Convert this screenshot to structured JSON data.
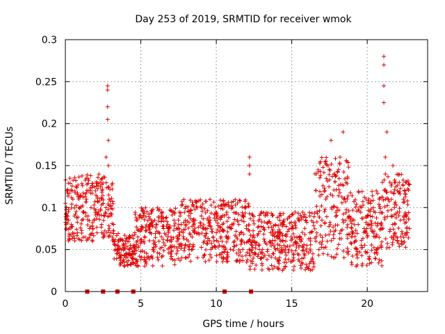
{
  "chart_data": {
    "type": "scatter",
    "title": "Day 253 of 2019, SRMTID for receiver wmok",
    "xlabel": "GPS time / hours",
    "ylabel": "SRMTID / TECUs",
    "xlim": [
      0,
      24
    ],
    "ylim": [
      0,
      0.3
    ],
    "xticks": [
      0,
      5,
      10,
      15,
      20
    ],
    "xtick_labels": [
      "0",
      "5",
      "10",
      "15",
      "20"
    ],
    "yticks": [
      0,
      0.05,
      0.1,
      0.15,
      0.2,
      0.25,
      0.3
    ],
    "ytick_labels": [
      "0",
      "0.05",
      "0.1",
      "0.15",
      "0.2",
      "0.25",
      "0.3"
    ],
    "grid": true,
    "marker": "+",
    "color": "#e00000",
    "series": [
      {
        "name": "SRMTID",
        "x": [
          0.0,
          0.1,
          0.2,
          0.3,
          0.4,
          0.5,
          0.6,
          0.7,
          0.8,
          0.9,
          1.0,
          1.1,
          1.2,
          1.3,
          1.4,
          1.5,
          1.6,
          1.7,
          1.8,
          1.9,
          2.0,
          2.1,
          2.2,
          2.3,
          2.4,
          2.5,
          2.6,
          2.7,
          2.8,
          2.8,
          2.8,
          2.8,
          2.85,
          2.85,
          2.9,
          2.9,
          3.0,
          3.1,
          3.2,
          3.3,
          3.4,
          3.5,
          3.6,
          3.7,
          3.8,
          3.9,
          4.0,
          4.1,
          4.2,
          4.3,
          4.4,
          4.5,
          4.6,
          4.7,
          4.8,
          4.9,
          5.0,
          5.2,
          5.4,
          5.6,
          5.8,
          6.0,
          6.2,
          6.4,
          6.6,
          6.8,
          7.0,
          7.2,
          7.4,
          7.6,
          7.8,
          8.0,
          8.2,
          8.4,
          8.6,
          8.8,
          9.0,
          9.2,
          9.4,
          9.6,
          9.8,
          10.0,
          10.2,
          10.4,
          10.6,
          10.8,
          11.0,
          11.2,
          11.4,
          11.6,
          11.8,
          12.0,
          12.2,
          12.2,
          12.2,
          12.4,
          12.6,
          12.8,
          13.0,
          13.2,
          13.4,
          13.6,
          13.8,
          14.0,
          14.2,
          14.4,
          14.6,
          14.8,
          15.0,
          15.2,
          15.4,
          15.6,
          15.8,
          16.0,
          16.2,
          16.4,
          16.6,
          16.8,
          17.0,
          17.2,
          17.4,
          17.6,
          17.8,
          18.0,
          18.2,
          18.4,
          18.6,
          18.8,
          19.0,
          19.2,
          19.4,
          19.6,
          19.8,
          20.0,
          20.2,
          20.4,
          20.6,
          20.8,
          21.0,
          21.1,
          21.1,
          21.1,
          21.1,
          21.2,
          21.2,
          21.3,
          21.4,
          21.5,
          21.6,
          21.7,
          21.8,
          22.0,
          22.2,
          22.4,
          22.6,
          22.8
        ],
        "y": [
          0.105,
          0.12,
          0.095,
          0.135,
          0.08,
          0.11,
          0.09,
          0.125,
          0.07,
          0.1,
          0.115,
          0.085,
          0.095,
          0.065,
          0.11,
          0.09,
          0.075,
          0.1,
          0.06,
          0.085,
          0.12,
          0.07,
          0.095,
          0.13,
          0.08,
          0.105,
          0.09,
          0.16,
          0.205,
          0.22,
          0.24,
          0.245,
          0.18,
          0.15,
          0.11,
          0.09,
          0.07,
          0.065,
          0.08,
          0.055,
          0.045,
          0.06,
          0.04,
          0.05,
          0.035,
          0.055,
          0.045,
          0.06,
          0.05,
          0.065,
          0.04,
          0.055,
          0.07,
          0.085,
          0.065,
          0.09,
          0.075,
          0.06,
          0.095,
          0.07,
          0.05,
          0.08,
          0.06,
          0.09,
          0.055,
          0.075,
          0.065,
          0.085,
          0.06,
          0.09,
          0.07,
          0.08,
          0.095,
          0.065,
          0.085,
          0.07,
          0.09,
          0.06,
          0.075,
          0.085,
          0.065,
          0.07,
          0.055,
          0.08,
          0.05,
          0.065,
          0.075,
          0.06,
          0.085,
          0.07,
          0.09,
          0.075,
          0.16,
          0.15,
          0.14,
          0.065,
          0.045,
          0.055,
          0.04,
          0.06,
          0.05,
          0.07,
          0.045,
          0.065,
          0.055,
          0.08,
          0.06,
          0.05,
          0.075,
          0.065,
          0.045,
          0.06,
          0.04,
          0.055,
          0.07,
          0.045,
          0.06,
          0.05,
          0.085,
          0.12,
          0.15,
          0.18,
          0.14,
          0.1,
          0.16,
          0.19,
          0.13,
          0.09,
          0.07,
          0.06,
          0.08,
          0.055,
          0.075,
          0.065,
          0.09,
          0.1,
          0.12,
          0.11,
          0.13,
          0.28,
          0.27,
          0.245,
          0.225,
          0.16,
          0.14,
          0.19,
          0.11,
          0.13,
          0.09,
          0.15,
          0.1,
          0.12,
          0.085,
          0.11,
          0.07,
          0.075
        ],
        "dense_bands": [
          {
            "x_range": [
              0,
              2.7
            ],
            "y_range": [
              0.06,
              0.14
            ]
          },
          {
            "x_range": [
              2.7,
              3.2
            ],
            "y_range": [
              0.06,
              0.13
            ]
          },
          {
            "x_range": [
              3.2,
              4.6
            ],
            "y_range": [
              0.03,
              0.07
            ]
          },
          {
            "x_range": [
              4.6,
              7.5
            ],
            "y_range": [
              0.03,
              0.1
            ]
          },
          {
            "x_range": [
              7.5,
              12.2
            ],
            "y_range": [
              0.035,
              0.11
            ]
          },
          {
            "x_range": [
              12.2,
              16.5
            ],
            "y_range": [
              0.025,
              0.095
            ]
          },
          {
            "x_range": [
              16.5,
              18.8
            ],
            "y_range": [
              0.04,
              0.16
            ]
          },
          {
            "x_range": [
              18.8,
              21.0
            ],
            "y_range": [
              0.03,
              0.12
            ]
          },
          {
            "x_range": [
              21.0,
              22.8
            ],
            "y_range": [
              0.05,
              0.14
            ]
          }
        ]
      },
      {
        "name": "zero markers",
        "x": [
          1.45,
          2.5,
          3.45,
          4.5,
          10.55,
          12.3
        ],
        "y": [
          0,
          0,
          0,
          0,
          0,
          0
        ],
        "marker": "square"
      }
    ]
  }
}
